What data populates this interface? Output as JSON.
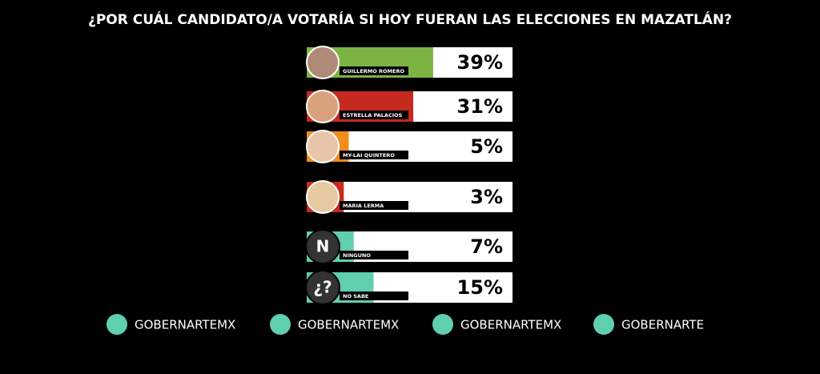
{
  "chart_data": {
    "type": "bar",
    "title": "¿POR CUÁL CANDIDATO/A VOTARÍA SI HOY FUERAN LAS ELECCIONES EN MAZATLÁN?",
    "categories": [
      "GUILLERMO ROMERO",
      "ESTRELLA PALACIOS",
      "MY-LAI QUINTERO",
      "MARIA LERMA",
      "NINGUNO",
      "NO SABE"
    ],
    "values": [
      39,
      31,
      5,
      3,
      7,
      15
    ],
    "value_labels": [
      "39%",
      "31%",
      "5%",
      "3%",
      "7%",
      "15%"
    ],
    "colors": [
      "#7cb342",
      "#c62a1f",
      "#f28c1b",
      "#c62a1f",
      "#5fcfb0",
      "#5fcfb0"
    ],
    "icons": [
      null,
      null,
      null,
      null,
      "N",
      "¿?"
    ]
  },
  "footer": {
    "handles": [
      "GOBERNARTEMX",
      "GOBERNARTEMX",
      "GOBERNARTEMX",
      "GOBERNARTE"
    ]
  }
}
